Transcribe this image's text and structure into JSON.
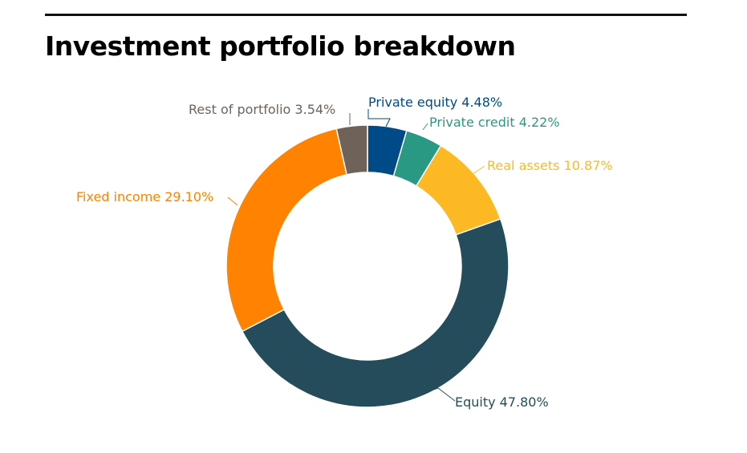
{
  "chart_data": {
    "type": "pie",
    "title": "Investment portfolio breakdown",
    "style": "donut",
    "slices": [
      {
        "label": "Private equity",
        "value": 4.48,
        "value_label": "4.48%",
        "color": "#004b87"
      },
      {
        "label": "Private credit",
        "value": 4.22,
        "value_label": "4.22%",
        "color": "#2a9984"
      },
      {
        "label": "Real assets",
        "value": 10.87,
        "value_label": "10.87%",
        "color": "#fdb924"
      },
      {
        "label": "Equity",
        "value": 47.8,
        "value_label": "47.80%",
        "color": "#244c5a"
      },
      {
        "label": "Fixed income",
        "value": 29.1,
        "value_label": "29.10%",
        "color": "#ff8200"
      },
      {
        "label": "Rest of portfolio",
        "value": 3.54,
        "value_label": "3.54%",
        "color": "#6e6259"
      }
    ],
    "legend": "none"
  }
}
